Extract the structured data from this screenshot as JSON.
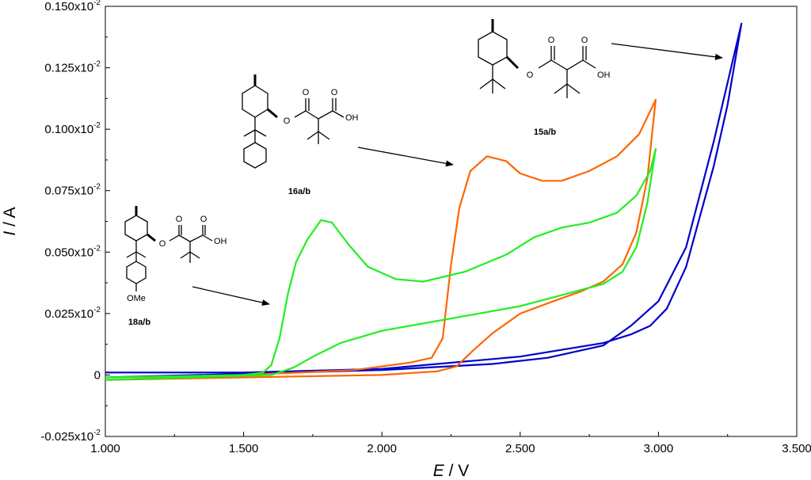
{
  "chart_data": {
    "type": "line",
    "title": "",
    "xlabel_var": "E",
    "xlabel_unit": " / V",
    "ylabel_var": "I",
    "ylabel_unit": " / A",
    "xlim": [
      1.0,
      3.5
    ],
    "ylim": [
      -0.025,
      0.15
    ],
    "x_ticks": [
      {
        "value": 1.0,
        "label": "1.000"
      },
      {
        "value": 1.5,
        "label": "1.500"
      },
      {
        "value": 2.0,
        "label": "2.000"
      },
      {
        "value": 2.5,
        "label": "2.500"
      },
      {
        "value": 3.0,
        "label": "3.000"
      },
      {
        "value": 3.5,
        "label": "3.500"
      }
    ],
    "y_ticks": [
      {
        "value": -0.025,
        "mant": "-0.025x10",
        "exp": "-2"
      },
      {
        "value": 0.0,
        "mant": "0",
        "exp": ""
      },
      {
        "value": 0.025,
        "mant": "0.025x10",
        "exp": "-2"
      },
      {
        "value": 0.05,
        "mant": "0.050x10",
        "exp": "-2"
      },
      {
        "value": 0.075,
        "mant": "0.075x10",
        "exp": "-2"
      },
      {
        "value": 0.1,
        "mant": "0.100x10",
        "exp": "-2"
      },
      {
        "value": 0.125,
        "mant": "0.125x10",
        "exp": "-2"
      },
      {
        "value": 0.15,
        "mant": "0.150x10",
        "exp": "-2"
      }
    ],
    "grid": false,
    "series": [
      {
        "color": "#0000cc",
        "forward": [
          [
            1.0,
            0.001
          ],
          [
            1.5,
            0.001
          ],
          [
            2.0,
            0.0025
          ],
          [
            2.5,
            0.0075
          ],
          [
            2.8,
            0.013
          ],
          [
            2.9,
            0.0165
          ],
          [
            2.97,
            0.02
          ],
          [
            3.03,
            0.027
          ],
          [
            3.1,
            0.044
          ],
          [
            3.2,
            0.085
          ],
          [
            3.25,
            0.11
          ],
          [
            3.3,
            0.143
          ]
        ],
        "reverse": [
          [
            3.3,
            0.143
          ],
          [
            3.2,
            0.095
          ],
          [
            3.1,
            0.052
          ],
          [
            3.0,
            0.03
          ],
          [
            2.9,
            0.02
          ],
          [
            2.8,
            0.012
          ],
          [
            2.6,
            0.007
          ],
          [
            2.4,
            0.0045
          ],
          [
            2.0,
            0.002
          ],
          [
            1.5,
            0.0005
          ],
          [
            1.0,
            -0.001
          ]
        ]
      },
      {
        "color": "#ff6600",
        "forward": [
          [
            1.0,
            -0.002
          ],
          [
            1.5,
            0.0
          ],
          [
            1.9,
            0.002
          ],
          [
            2.1,
            0.005
          ],
          [
            2.18,
            0.007
          ],
          [
            2.22,
            0.015
          ],
          [
            2.25,
            0.045
          ],
          [
            2.28,
            0.068
          ],
          [
            2.32,
            0.083
          ],
          [
            2.38,
            0.089
          ],
          [
            2.45,
            0.087
          ],
          [
            2.5,
            0.082
          ],
          [
            2.58,
            0.079
          ],
          [
            2.65,
            0.079
          ],
          [
            2.75,
            0.083
          ],
          [
            2.85,
            0.089
          ],
          [
            2.93,
            0.098
          ],
          [
            2.99,
            0.112
          ]
        ],
        "reverse": [
          [
            2.99,
            0.112
          ],
          [
            2.96,
            0.08
          ],
          [
            2.92,
            0.058
          ],
          [
            2.87,
            0.045
          ],
          [
            2.8,
            0.038
          ],
          [
            2.72,
            0.034
          ],
          [
            2.62,
            0.03
          ],
          [
            2.5,
            0.025
          ],
          [
            2.4,
            0.017
          ],
          [
            2.33,
            0.01
          ],
          [
            2.27,
            0.0035
          ],
          [
            2.2,
            0.0015
          ],
          [
            2.0,
            0.0
          ],
          [
            1.5,
            -0.001
          ],
          [
            1.0,
            -0.002
          ]
        ]
      },
      {
        "color": "#22ee22",
        "forward": [
          [
            1.0,
            -0.001
          ],
          [
            1.5,
            0.0
          ],
          [
            1.57,
            0.001
          ],
          [
            1.6,
            0.004
          ],
          [
            1.63,
            0.015
          ],
          [
            1.66,
            0.033
          ],
          [
            1.69,
            0.046
          ],
          [
            1.73,
            0.055
          ],
          [
            1.78,
            0.063
          ],
          [
            1.82,
            0.062
          ],
          [
            1.88,
            0.053
          ],
          [
            1.95,
            0.044
          ],
          [
            2.05,
            0.039
          ],
          [
            2.15,
            0.038
          ],
          [
            2.3,
            0.042
          ],
          [
            2.45,
            0.049
          ],
          [
            2.55,
            0.056
          ],
          [
            2.65,
            0.06
          ],
          [
            2.75,
            0.062
          ],
          [
            2.85,
            0.066
          ],
          [
            2.92,
            0.073
          ],
          [
            2.97,
            0.083
          ],
          [
            2.99,
            0.092
          ]
        ],
        "reverse": [
          [
            2.99,
            0.092
          ],
          [
            2.96,
            0.07
          ],
          [
            2.92,
            0.052
          ],
          [
            2.87,
            0.042
          ],
          [
            2.8,
            0.037
          ],
          [
            2.7,
            0.034
          ],
          [
            2.5,
            0.028
          ],
          [
            2.2,
            0.022
          ],
          [
            2.0,
            0.018
          ],
          [
            1.85,
            0.013
          ],
          [
            1.76,
            0.008
          ],
          [
            1.68,
            0.003
          ],
          [
            1.6,
            0.0
          ],
          [
            1.3,
            -0.001
          ],
          [
            1.0,
            -0.002
          ]
        ]
      }
    ],
    "annotations": [
      {
        "label": "15a/b"
      },
      {
        "label": "16a/b"
      },
      {
        "label": "18a/b"
      }
    ],
    "atoms": {
      "o": "O",
      "oh": "OH",
      "ome": "OMe"
    }
  }
}
